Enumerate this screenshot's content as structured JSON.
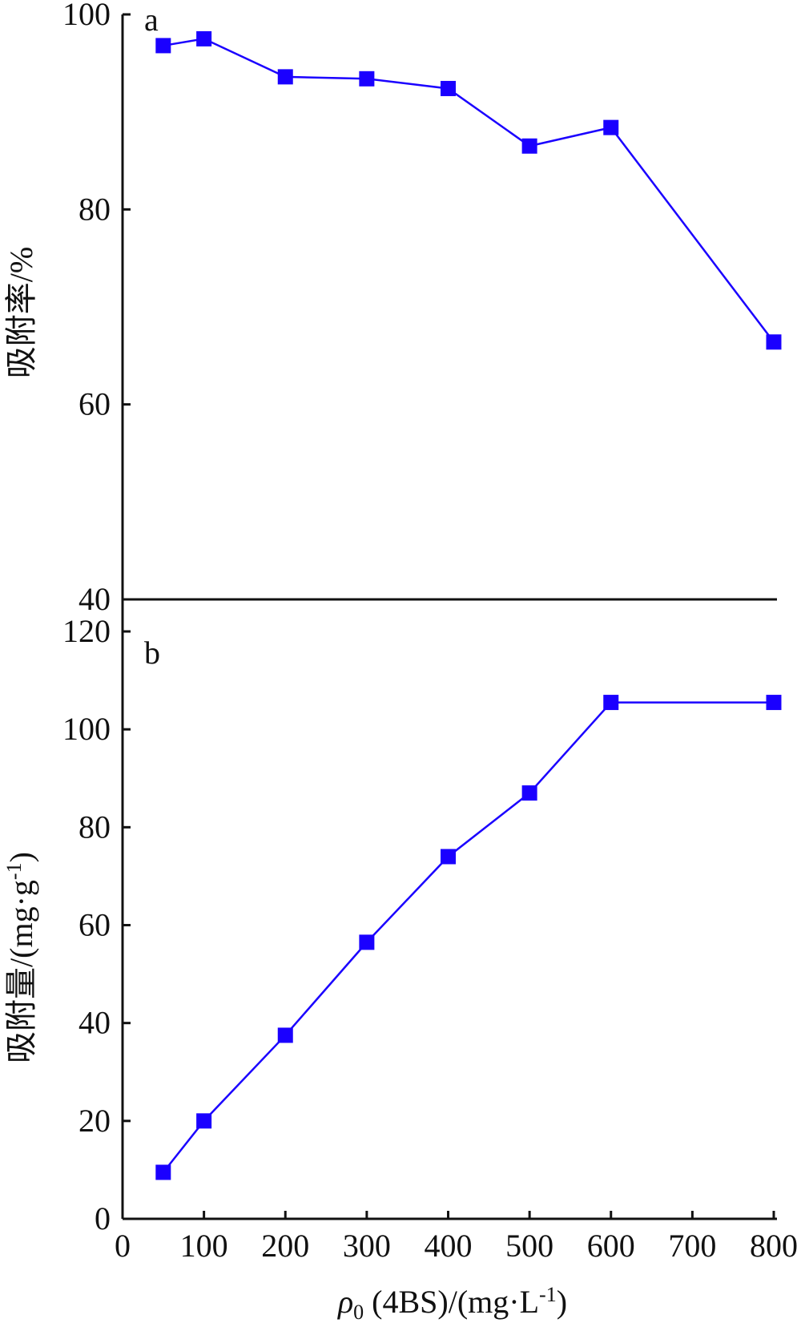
{
  "colors": {
    "series": "#1a00ff",
    "axis": "#111111"
  },
  "chart_data": [
    {
      "type": "line",
      "panel_label": "a",
      "ylabel": "吸附率/%",
      "xlabel": "",
      "ylim": [
        40,
        100
      ],
      "yticks": [
        "40",
        "60",
        "80",
        "100"
      ],
      "grid": false,
      "x": [
        50,
        100,
        200,
        300,
        400,
        500,
        600,
        800
      ],
      "series": [
        {
          "values": [
            96.8,
            97.5,
            93.6,
            93.4,
            92.4,
            86.5,
            88.4,
            66.4
          ],
          "marker": "square"
        }
      ]
    },
    {
      "type": "line",
      "panel_label": "b",
      "ylabel_main": "吸附量/(mg·g",
      "ylabel_sup": "-1",
      "ylabel_close": ")",
      "xlabel_rho": "ρ",
      "xlabel_sub": "0",
      "xlabel_main": " (4BS)/(mg·L",
      "xlabel_sup": "-1",
      "xlabel_close": ")",
      "xlim": [
        0,
        800
      ],
      "xticks": [
        "0",
        "100",
        "200",
        "300",
        "400",
        "500",
        "600",
        "700",
        "800"
      ],
      "ylim": [
        0,
        120
      ],
      "yticks": [
        "0",
        "20",
        "40",
        "60",
        "80",
        "100",
        "120"
      ],
      "grid": false,
      "x": [
        50,
        100,
        200,
        300,
        400,
        500,
        600,
        800
      ],
      "series": [
        {
          "values": [
            9.5,
            20,
            37.5,
            56.5,
            74,
            87,
            105.5,
            105.5
          ],
          "marker": "square"
        }
      ]
    }
  ]
}
